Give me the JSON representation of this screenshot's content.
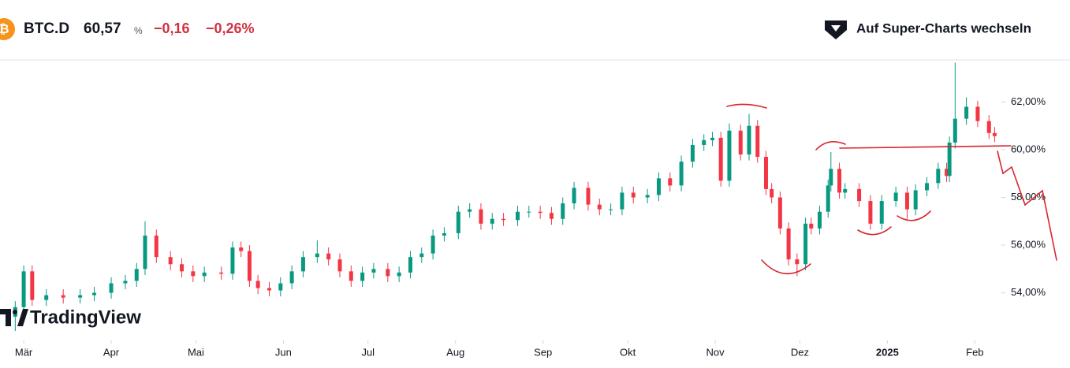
{
  "header": {
    "symbol": "BTC.D",
    "price": "60,57",
    "price_unit": "%",
    "change": "−0,16",
    "change_pct": "−0,26%",
    "button": "Auf Super-Charts wechseln",
    "watermark": "TradingView"
  },
  "chart_data": {
    "type": "candlestick",
    "up_color": "#089981",
    "down_color": "#f23645",
    "x": [
      -3,
      0,
      3,
      8,
      14,
      20,
      25,
      31,
      36,
      40,
      43,
      47,
      52,
      56,
      60,
      64,
      70,
      74,
      77,
      80,
      83,
      87,
      91,
      95,
      99,
      104,
      108,
      112,
      116,
      120,
      124,
      129,
      133,
      137,
      141,
      145,
      149,
      154,
      158,
      162,
      166,
      170,
      175,
      179,
      183,
      187,
      191,
      195,
      200,
      204,
      208,
      212,
      216,
      221,
      225,
      229,
      233,
      237,
      241,
      244,
      247,
      250,
      254,
      257,
      260,
      263,
      265,
      268,
      271,
      274,
      277,
      279,
      282,
      285,
      286,
      289,
      291,
      296,
      300,
      304,
      309,
      313,
      316,
      320,
      324,
      327,
      328,
      330,
      334,
      338,
      342,
      344
    ],
    "open": [
      53.0,
      53.4,
      54.9,
      53.7,
      53.9,
      53.8,
      53.9,
      54.0,
      54.4,
      54.5,
      55.0,
      56.4,
      55.5,
      55.2,
      54.9,
      54.7,
      54.85,
      54.8,
      55.9,
      55.75,
      54.5,
      54.2,
      54.1,
      54.4,
      54.9,
      55.5,
      55.65,
      55.4,
      54.9,
      54.5,
      54.85,
      55.0,
      54.7,
      54.85,
      55.5,
      55.65,
      56.4,
      56.5,
      57.4,
      57.5,
      56.9,
      57.1,
      57.05,
      57.4,
      57.4,
      57.35,
      57.1,
      57.75,
      58.4,
      57.7,
      57.5,
      57.5,
      58.2,
      58.0,
      58.1,
      58.8,
      58.5,
      59.5,
      60.2,
      60.4,
      60.5,
      58.7,
      60.8,
      59.8,
      61.0,
      59.7,
      58.35,
      58.0,
      56.7,
      55.4,
      55.2,
      56.9,
      56.7,
      57.4,
      58.5,
      59.2,
      58.2,
      58.35,
      57.85,
      56.9,
      57.85,
      58.2,
      57.5,
      58.3,
      58.6,
      59.2,
      58.9,
      60.3,
      61.3,
      61.8,
      61.2,
      60.7
    ],
    "high": [
      53.65,
      55.15,
      55.15,
      54.15,
      54.15,
      54.15,
      54.25,
      54.65,
      54.75,
      55.25,
      57.0,
      56.65,
      55.75,
      55.45,
      55.15,
      55.1,
      55.1,
      56.15,
      56.15,
      56.0,
      54.75,
      54.45,
      54.65,
      55.15,
      55.75,
      56.2,
      55.9,
      55.65,
      55.15,
      55.1,
      55.25,
      55.25,
      55.1,
      55.75,
      55.9,
      56.65,
      56.75,
      57.65,
      57.75,
      57.75,
      57.35,
      57.35,
      57.65,
      57.65,
      57.65,
      57.6,
      58.0,
      58.65,
      58.65,
      57.95,
      57.75,
      58.45,
      58.45,
      58.35,
      59.05,
      59.05,
      59.75,
      60.45,
      60.65,
      60.75,
      60.75,
      61.1,
      61.05,
      61.5,
      61.25,
      59.95,
      58.6,
      58.25,
      56.95,
      55.65,
      57.15,
      57.15,
      57.65,
      58.75,
      59.9,
      59.45,
      58.6,
      58.6,
      58.1,
      58.1,
      58.45,
      58.45,
      58.55,
      58.85,
      59.45,
      59.45,
      60.55,
      63.65,
      62.2,
      62.05,
      61.45,
      60.95
    ],
    "low": [
      52.4,
      53.15,
      53.45,
      53.45,
      53.55,
      53.55,
      53.65,
      53.75,
      54.15,
      54.25,
      54.75,
      55.25,
      54.95,
      54.65,
      54.45,
      54.45,
      54.55,
      54.55,
      55.5,
      54.25,
      53.95,
      53.85,
      53.85,
      54.15,
      54.65,
      55.25,
      55.15,
      54.65,
      54.25,
      54.25,
      54.6,
      54.45,
      54.45,
      54.6,
      55.25,
      55.4,
      56.15,
      56.25,
      57.15,
      56.65,
      56.65,
      56.8,
      56.8,
      57.15,
      57.1,
      56.85,
      56.85,
      57.5,
      57.45,
      57.25,
      57.25,
      57.25,
      57.75,
      57.75,
      57.85,
      58.25,
      58.25,
      59.25,
      59.95,
      60.15,
      58.45,
      58.45,
      59.55,
      59.55,
      59.45,
      58.1,
      57.75,
      56.45,
      55.15,
      54.7,
      54.95,
      56.45,
      56.45,
      57.15,
      58.25,
      57.95,
      57.95,
      57.6,
      56.65,
      56.65,
      57.6,
      57.1,
      57.25,
      58.05,
      58.35,
      58.65,
      58.65,
      60.05,
      61.05,
      60.95,
      60.45,
      60.32
    ],
    "close": [
      53.4,
      54.9,
      53.7,
      53.9,
      53.8,
      53.9,
      54.0,
      54.4,
      54.5,
      55.0,
      56.4,
      55.5,
      55.2,
      54.9,
      54.7,
      54.85,
      54.8,
      55.9,
      55.75,
      54.5,
      54.2,
      54.1,
      54.4,
      54.9,
      55.5,
      55.65,
      55.4,
      54.9,
      54.5,
      54.85,
      55.0,
      54.7,
      54.85,
      55.5,
      55.65,
      56.4,
      56.5,
      57.4,
      57.5,
      56.9,
      57.1,
      57.05,
      57.4,
      57.4,
      57.35,
      57.1,
      57.75,
      58.4,
      57.7,
      57.5,
      57.5,
      58.2,
      58.0,
      58.1,
      58.8,
      58.5,
      59.5,
      60.2,
      60.4,
      60.5,
      58.7,
      60.8,
      59.8,
      61.0,
      59.7,
      58.35,
      58.0,
      56.7,
      55.4,
      55.2,
      56.9,
      56.7,
      57.4,
      58.5,
      59.2,
      58.2,
      58.35,
      57.85,
      56.9,
      57.85,
      58.2,
      57.5,
      58.3,
      58.6,
      59.2,
      58.9,
      60.3,
      61.3,
      61.8,
      61.2,
      60.7,
      60.57
    ],
    "xlim": [
      -8.4,
      346.4
    ],
    "xticks": [
      {
        "value": 0,
        "label": "Mär"
      },
      {
        "value": 31,
        "label": "Apr"
      },
      {
        "value": 61,
        "label": "Mai"
      },
      {
        "value": 92,
        "label": "Jun"
      },
      {
        "value": 122,
        "label": "Jul"
      },
      {
        "value": 153,
        "label": "Aug"
      },
      {
        "value": 184,
        "label": "Sep"
      },
      {
        "value": 214,
        "label": "Okt"
      },
      {
        "value": 245,
        "label": "Nov"
      },
      {
        "value": 275,
        "label": "Dez"
      },
      {
        "value": 306,
        "label": "2025"
      },
      {
        "value": 337,
        "label": "Feb"
      }
    ],
    "ylim": [
      52.07,
      63.7
    ],
    "yticks": [
      {
        "value": 54,
        "label": "54,00%"
      },
      {
        "value": 56,
        "label": "56,00%"
      },
      {
        "value": 58,
        "label": "58,00%"
      },
      {
        "value": 60,
        "label": "60,00%"
      },
      {
        "value": 62,
        "label": "62,00%"
      }
    ]
  }
}
